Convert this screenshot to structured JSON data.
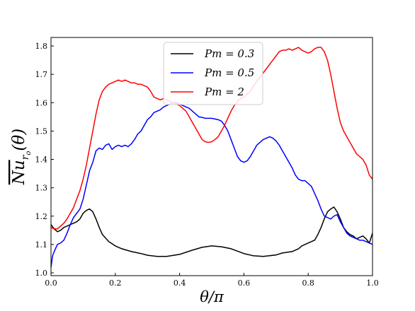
{
  "chart_data": {
    "type": "line",
    "title": "",
    "xlabel": "θ/π",
    "ylabel": "Nu_{r_o}(θ)",
    "xlim": [
      0.0,
      1.0
    ],
    "ylim": [
      0.99,
      1.83
    ],
    "x_ticks": [
      "0.0",
      "0.2",
      "0.4",
      "0.6",
      "0.8",
      "1.0"
    ],
    "y_ticks": [
      "1.0",
      "1.1",
      "1.2",
      "1.3",
      "1.4",
      "1.5",
      "1.6",
      "1.7",
      "1.8"
    ],
    "grid": false,
    "legend_position": "top-center",
    "series": [
      {
        "name": "Pm = 0.3",
        "color": "#000000",
        "points": [
          [
            0.0,
            1.17
          ],
          [
            0.01,
            1.155
          ],
          [
            0.02,
            1.145
          ],
          [
            0.03,
            1.15
          ],
          [
            0.04,
            1.16
          ],
          [
            0.05,
            1.165
          ],
          [
            0.06,
            1.17
          ],
          [
            0.07,
            1.175
          ],
          [
            0.08,
            1.18
          ],
          [
            0.09,
            1.19
          ],
          [
            0.1,
            1.21
          ],
          [
            0.11,
            1.22
          ],
          [
            0.12,
            1.225
          ],
          [
            0.13,
            1.215
          ],
          [
            0.14,
            1.19
          ],
          [
            0.15,
            1.16
          ],
          [
            0.16,
            1.135
          ],
          [
            0.18,
            1.11
          ],
          [
            0.2,
            1.095
          ],
          [
            0.22,
            1.085
          ],
          [
            0.25,
            1.075
          ],
          [
            0.28,
            1.068
          ],
          [
            0.3,
            1.062
          ],
          [
            0.33,
            1.058
          ],
          [
            0.36,
            1.058
          ],
          [
            0.4,
            1.065
          ],
          [
            0.44,
            1.08
          ],
          [
            0.47,
            1.09
          ],
          [
            0.5,
            1.095
          ],
          [
            0.53,
            1.092
          ],
          [
            0.56,
            1.085
          ],
          [
            0.6,
            1.068
          ],
          [
            0.63,
            1.06
          ],
          [
            0.66,
            1.058
          ],
          [
            0.7,
            1.063
          ],
          [
            0.72,
            1.07
          ],
          [
            0.75,
            1.075
          ],
          [
            0.77,
            1.085
          ],
          [
            0.78,
            1.095
          ],
          [
            0.8,
            1.105
          ],
          [
            0.82,
            1.115
          ],
          [
            0.83,
            1.135
          ],
          [
            0.84,
            1.16
          ],
          [
            0.85,
            1.19
          ],
          [
            0.86,
            1.215
          ],
          [
            0.87,
            1.225
          ],
          [
            0.88,
            1.232
          ],
          [
            0.89,
            1.215
          ],
          [
            0.9,
            1.19
          ],
          [
            0.91,
            1.16
          ],
          [
            0.92,
            1.145
          ],
          [
            0.93,
            1.135
          ],
          [
            0.94,
            1.13
          ],
          [
            0.95,
            1.12
          ],
          [
            0.96,
            1.125
          ],
          [
            0.97,
            1.13
          ],
          [
            0.98,
            1.12
          ],
          [
            0.99,
            1.105
          ],
          [
            1.0,
            1.14
          ]
        ]
      },
      {
        "name": "Pm = 0.5",
        "color": "#0000ff",
        "points": [
          [
            0.0,
            1.02
          ],
          [
            0.005,
            1.06
          ],
          [
            0.01,
            1.075
          ],
          [
            0.02,
            1.1
          ],
          [
            0.03,
            1.105
          ],
          [
            0.04,
            1.115
          ],
          [
            0.05,
            1.14
          ],
          [
            0.06,
            1.17
          ],
          [
            0.07,
            1.195
          ],
          [
            0.08,
            1.21
          ],
          [
            0.09,
            1.225
          ],
          [
            0.1,
            1.26
          ],
          [
            0.11,
            1.31
          ],
          [
            0.12,
            1.36
          ],
          [
            0.13,
            1.39
          ],
          [
            0.14,
            1.43
          ],
          [
            0.15,
            1.44
          ],
          [
            0.16,
            1.435
          ],
          [
            0.17,
            1.45
          ],
          [
            0.18,
            1.455
          ],
          [
            0.19,
            1.435
          ],
          [
            0.2,
            1.445
          ],
          [
            0.21,
            1.45
          ],
          [
            0.22,
            1.445
          ],
          [
            0.23,
            1.45
          ],
          [
            0.24,
            1.445
          ],
          [
            0.25,
            1.455
          ],
          [
            0.26,
            1.47
          ],
          [
            0.27,
            1.49
          ],
          [
            0.28,
            1.5
          ],
          [
            0.29,
            1.52
          ],
          [
            0.3,
            1.54
          ],
          [
            0.31,
            1.55
          ],
          [
            0.32,
            1.565
          ],
          [
            0.33,
            1.57
          ],
          [
            0.34,
            1.575
          ],
          [
            0.35,
            1.585
          ],
          [
            0.36,
            1.59
          ],
          [
            0.37,
            1.595
          ],
          [
            0.38,
            1.6
          ],
          [
            0.39,
            1.6
          ],
          [
            0.4,
            1.595
          ],
          [
            0.41,
            1.59
          ],
          [
            0.42,
            1.585
          ],
          [
            0.43,
            1.58
          ],
          [
            0.44,
            1.57
          ],
          [
            0.45,
            1.56
          ],
          [
            0.46,
            1.55
          ],
          [
            0.47,
            1.548
          ],
          [
            0.48,
            1.545
          ],
          [
            0.5,
            1.545
          ],
          [
            0.52,
            1.54
          ],
          [
            0.53,
            1.535
          ],
          [
            0.54,
            1.52
          ],
          [
            0.55,
            1.5
          ],
          [
            0.56,
            1.47
          ],
          [
            0.57,
            1.44
          ],
          [
            0.58,
            1.41
          ],
          [
            0.59,
            1.395
          ],
          [
            0.6,
            1.39
          ],
          [
            0.61,
            1.395
          ],
          [
            0.62,
            1.41
          ],
          [
            0.63,
            1.43
          ],
          [
            0.64,
            1.45
          ],
          [
            0.65,
            1.46
          ],
          [
            0.66,
            1.47
          ],
          [
            0.67,
            1.475
          ],
          [
            0.68,
            1.48
          ],
          [
            0.69,
            1.475
          ],
          [
            0.7,
            1.465
          ],
          [
            0.71,
            1.45
          ],
          [
            0.72,
            1.43
          ],
          [
            0.73,
            1.41
          ],
          [
            0.74,
            1.39
          ],
          [
            0.75,
            1.37
          ],
          [
            0.76,
            1.345
          ],
          [
            0.77,
            1.33
          ],
          [
            0.78,
            1.325
          ],
          [
            0.79,
            1.325
          ],
          [
            0.8,
            1.315
          ],
          [
            0.81,
            1.305
          ],
          [
            0.82,
            1.28
          ],
          [
            0.83,
            1.255
          ],
          [
            0.84,
            1.225
          ],
          [
            0.85,
            1.2
          ],
          [
            0.86,
            1.195
          ],
          [
            0.87,
            1.19
          ],
          [
            0.88,
            1.2
          ],
          [
            0.89,
            1.205
          ],
          [
            0.9,
            1.18
          ],
          [
            0.91,
            1.16
          ],
          [
            0.92,
            1.14
          ],
          [
            0.93,
            1.13
          ],
          [
            0.94,
            1.125
          ],
          [
            0.95,
            1.12
          ],
          [
            0.96,
            1.115
          ],
          [
            0.97,
            1.115
          ],
          [
            0.98,
            1.11
          ],
          [
            0.99,
            1.105
          ],
          [
            1.0,
            1.1
          ]
        ]
      },
      {
        "name": "Pm = 2",
        "color": "#ff0000",
        "points": [
          [
            0.0,
            1.16
          ],
          [
            0.01,
            1.155
          ],
          [
            0.02,
            1.155
          ],
          [
            0.03,
            1.165
          ],
          [
            0.04,
            1.175
          ],
          [
            0.05,
            1.19
          ],
          [
            0.06,
            1.21
          ],
          [
            0.07,
            1.23
          ],
          [
            0.08,
            1.26
          ],
          [
            0.09,
            1.29
          ],
          [
            0.1,
            1.33
          ],
          [
            0.11,
            1.38
          ],
          [
            0.12,
            1.44
          ],
          [
            0.13,
            1.5
          ],
          [
            0.14,
            1.56
          ],
          [
            0.15,
            1.61
          ],
          [
            0.16,
            1.64
          ],
          [
            0.17,
            1.655
          ],
          [
            0.18,
            1.665
          ],
          [
            0.19,
            1.67
          ],
          [
            0.2,
            1.675
          ],
          [
            0.21,
            1.68
          ],
          [
            0.22,
            1.675
          ],
          [
            0.23,
            1.68
          ],
          [
            0.24,
            1.675
          ],
          [
            0.25,
            1.67
          ],
          [
            0.26,
            1.67
          ],
          [
            0.27,
            1.665
          ],
          [
            0.28,
            1.665
          ],
          [
            0.29,
            1.66
          ],
          [
            0.3,
            1.655
          ],
          [
            0.31,
            1.64
          ],
          [
            0.32,
            1.62
          ],
          [
            0.33,
            1.615
          ],
          [
            0.34,
            1.61
          ],
          [
            0.35,
            1.615
          ],
          [
            0.36,
            1.61
          ],
          [
            0.37,
            1.605
          ],
          [
            0.38,
            1.6
          ],
          [
            0.39,
            1.595
          ],
          [
            0.4,
            1.59
          ],
          [
            0.41,
            1.58
          ],
          [
            0.42,
            1.57
          ],
          [
            0.43,
            1.55
          ],
          [
            0.44,
            1.53
          ],
          [
            0.45,
            1.51
          ],
          [
            0.46,
            1.49
          ],
          [
            0.47,
            1.47
          ],
          [
            0.48,
            1.462
          ],
          [
            0.49,
            1.46
          ],
          [
            0.5,
            1.462
          ],
          [
            0.51,
            1.47
          ],
          [
            0.52,
            1.48
          ],
          [
            0.53,
            1.5
          ],
          [
            0.54,
            1.52
          ],
          [
            0.55,
            1.545
          ],
          [
            0.56,
            1.57
          ],
          [
            0.57,
            1.59
          ],
          [
            0.58,
            1.605
          ],
          [
            0.59,
            1.615
          ],
          [
            0.6,
            1.62
          ],
          [
            0.61,
            1.63
          ],
          [
            0.62,
            1.64
          ],
          [
            0.63,
            1.66
          ],
          [
            0.64,
            1.675
          ],
          [
            0.65,
            1.69
          ],
          [
            0.66,
            1.705
          ],
          [
            0.67,
            1.72
          ],
          [
            0.68,
            1.735
          ],
          [
            0.69,
            1.75
          ],
          [
            0.7,
            1.765
          ],
          [
            0.71,
            1.78
          ],
          [
            0.72,
            1.785
          ],
          [
            0.73,
            1.785
          ],
          [
            0.74,
            1.79
          ],
          [
            0.75,
            1.785
          ],
          [
            0.76,
            1.79
          ],
          [
            0.77,
            1.795
          ],
          [
            0.78,
            1.785
          ],
          [
            0.79,
            1.78
          ],
          [
            0.8,
            1.775
          ],
          [
            0.81,
            1.78
          ],
          [
            0.82,
            1.79
          ],
          [
            0.83,
            1.795
          ],
          [
            0.84,
            1.795
          ],
          [
            0.85,
            1.78
          ],
          [
            0.86,
            1.75
          ],
          [
            0.87,
            1.7
          ],
          [
            0.88,
            1.64
          ],
          [
            0.89,
            1.58
          ],
          [
            0.9,
            1.53
          ],
          [
            0.91,
            1.5
          ],
          [
            0.92,
            1.48
          ],
          [
            0.93,
            1.46
          ],
          [
            0.94,
            1.44
          ],
          [
            0.95,
            1.42
          ],
          [
            0.96,
            1.41
          ],
          [
            0.97,
            1.4
          ],
          [
            0.98,
            1.38
          ],
          [
            0.99,
            1.345
          ],
          [
            1.0,
            1.33
          ]
        ]
      }
    ]
  }
}
